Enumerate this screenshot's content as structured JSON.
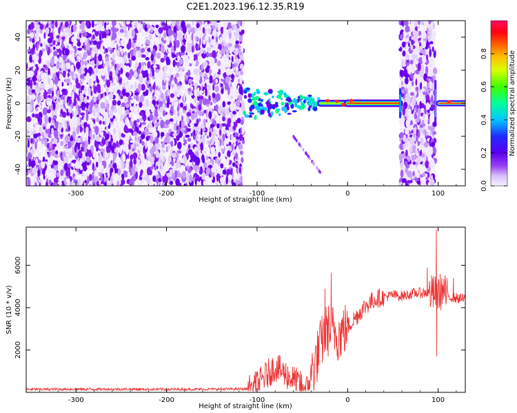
{
  "title": "C2E1.2023.196.12.35.R19",
  "chart_data": [
    {
      "type": "heatmap",
      "xlabel": "Height of straight line (km)",
      "ylabel": "Frequency (Hz)",
      "xlim": [
        -355,
        130
      ],
      "ylim": [
        -50,
        50
      ],
      "xticks": [
        -300,
        -200,
        -100,
        0,
        100
      ],
      "yticks": [
        -40,
        -20,
        0,
        20,
        40
      ],
      "colorbar": {
        "label": "Normalized spectral amplitude",
        "range": [
          0.0,
          1.0
        ],
        "ticks": [
          0.0,
          0.2,
          0.4,
          0.6,
          0.8
        ],
        "colors": [
          "#f2eefc",
          "#c9a9f7",
          "#7b00f0",
          "#1f2bff",
          "#00c8ff",
          "#00ff80",
          "#a0ff00",
          "#ffff00",
          "#ff8000",
          "#ff0000",
          "#ff1060"
        ]
      },
      "regions": [
        {
          "x": [
            -355,
            -115
          ],
          "freq": [
            -50,
            50
          ],
          "level": "noise 0.0-0.3"
        },
        {
          "x": [
            -115,
            -30
          ],
          "freq": [
            -12,
            12
          ],
          "level": "0.3-0.6"
        },
        {
          "x": [
            -30,
            0
          ],
          "freq": [
            -4,
            4
          ],
          "level": "0.5-0.8"
        },
        {
          "x": [
            0,
            57
          ],
          "freq": [
            -2,
            2
          ],
          "level": "0.9-1.0"
        },
        {
          "x": [
            58,
            97
          ],
          "freq": [
            -50,
            50
          ],
          "level": "noise 0.0-0.3"
        },
        {
          "x": [
            100,
            130
          ],
          "freq": [
            -3,
            3
          ],
          "level": "0.5-1.0"
        }
      ]
    },
    {
      "type": "line",
      "xlabel": "Height of straight line (km)",
      "ylabel": "SNR (10 * v/v)",
      "xlim": [
        -355,
        130
      ],
      "ylim": [
        0,
        7800
      ],
      "xticks": [
        -300,
        -200,
        -100,
        0,
        100
      ],
      "yticks": [
        2000,
        4000,
        6000
      ],
      "color": "#ee3333",
      "x": [
        -355,
        -300,
        -250,
        -200,
        -150,
        -110,
        -100,
        -90,
        -80,
        -70,
        -60,
        -50,
        -45,
        -40,
        -35,
        -30,
        -25,
        -20,
        -15,
        -10,
        -5,
        0,
        10,
        20,
        30,
        40,
        50,
        60,
        70,
        80,
        90,
        95,
        100,
        105,
        110,
        120,
        130
      ],
      "y": [
        140,
        150,
        150,
        140,
        150,
        160,
        350,
        800,
        1200,
        900,
        600,
        300,
        150,
        900,
        1500,
        2200,
        2800,
        3000,
        2900,
        2700,
        2900,
        3100,
        3600,
        4100,
        4400,
        4500,
        4600,
        4550,
        4650,
        4700,
        4700,
        4650,
        4700,
        4800,
        4550,
        4450,
        4400
      ]
    }
  ]
}
